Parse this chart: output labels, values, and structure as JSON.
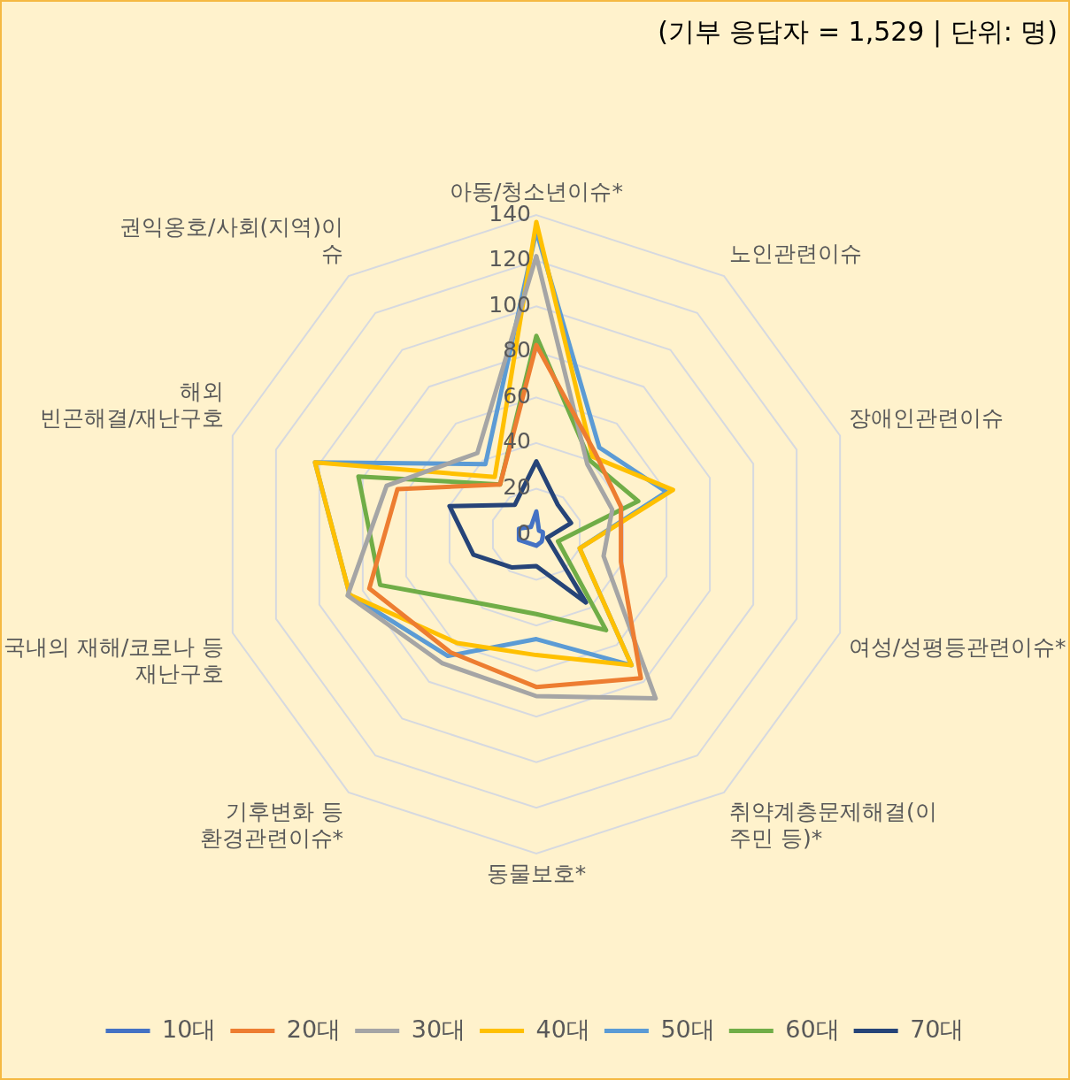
{
  "chart_data": {
    "type": "radar",
    "annotations": [
      "(기부 응답자 = 1,529 | 단위: 명)"
    ],
    "categories": [
      "아동/청소년이슈*",
      "노인관련이슈",
      "장애인관련이슈",
      "여성/성평등관련이슈*",
      "취약계층문제해결(이\n주민 등)*",
      "동물보호*",
      "기후변화 등\n환경관련이슈*",
      "국내의 재해/코로나 등\n재난구호",
      "해외\n빈곤해결/재난구호",
      "권익옹호/사회(지역)이\n슈"
    ],
    "series": [
      {
        "name": "10대",
        "color": "#4472c4",
        "values": [
          10,
          2,
          3,
          3,
          4,
          5,
          5,
          8,
          8,
          4
        ]
      },
      {
        "name": "20대",
        "color": "#ed7d31",
        "values": [
          83,
          44,
          39,
          39,
          78,
          67,
          64,
          77,
          64,
          27
        ]
      },
      {
        "name": "30대",
        "color": "#a5a5a5",
        "values": [
          122,
          38,
          35,
          31,
          89,
          71,
          70,
          87,
          69,
          44
        ]
      },
      {
        "name": "40대",
        "color": "#ffc000",
        "values": [
          137,
          42,
          63,
          20,
          71,
          53,
          59,
          86,
          102,
          31
        ]
      },
      {
        "name": "50대",
        "color": "#5b9bd5",
        "values": [
          133,
          47,
          60,
          20,
          71,
          46,
          66,
          86,
          102,
          38
        ]
      },
      {
        "name": "60대",
        "color": "#70ad47",
        "values": [
          87,
          40,
          47,
          10,
          52,
          35,
          38,
          72,
          82,
          27
        ]
      },
      {
        "name": "70대",
        "color": "#264478",
        "values": [
          32,
          16,
          16,
          5,
          37,
          14,
          18,
          29,
          40,
          16
        ]
      }
    ],
    "ylim": [
      0,
      140
    ],
    "yticks": [
      0,
      20,
      40,
      60,
      80,
      100,
      120,
      140
    ],
    "grid": true,
    "legend": "bottom",
    "marker": "none",
    "line_style": "solid"
  }
}
